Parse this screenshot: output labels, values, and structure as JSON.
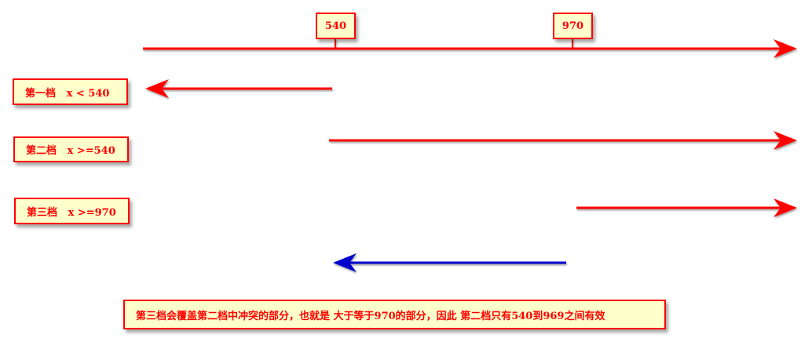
{
  "axis": {
    "ticks": [
      "540",
      "970"
    ],
    "color": "#ff0000"
  },
  "tiers": [
    {
      "label": "第一档   x < 540"
    },
    {
      "label": "第二档   x >=540"
    },
    {
      "label": "第三档   x >=970"
    }
  ],
  "note": "第三档会覆盖第二档中冲突的部分，也就是 大于等于970的部分，因此 第二档只有540到969之间有效",
  "colors": {
    "red": "#ff0000",
    "blue": "#0000cc",
    "box_fill": "#ffffcc"
  }
}
